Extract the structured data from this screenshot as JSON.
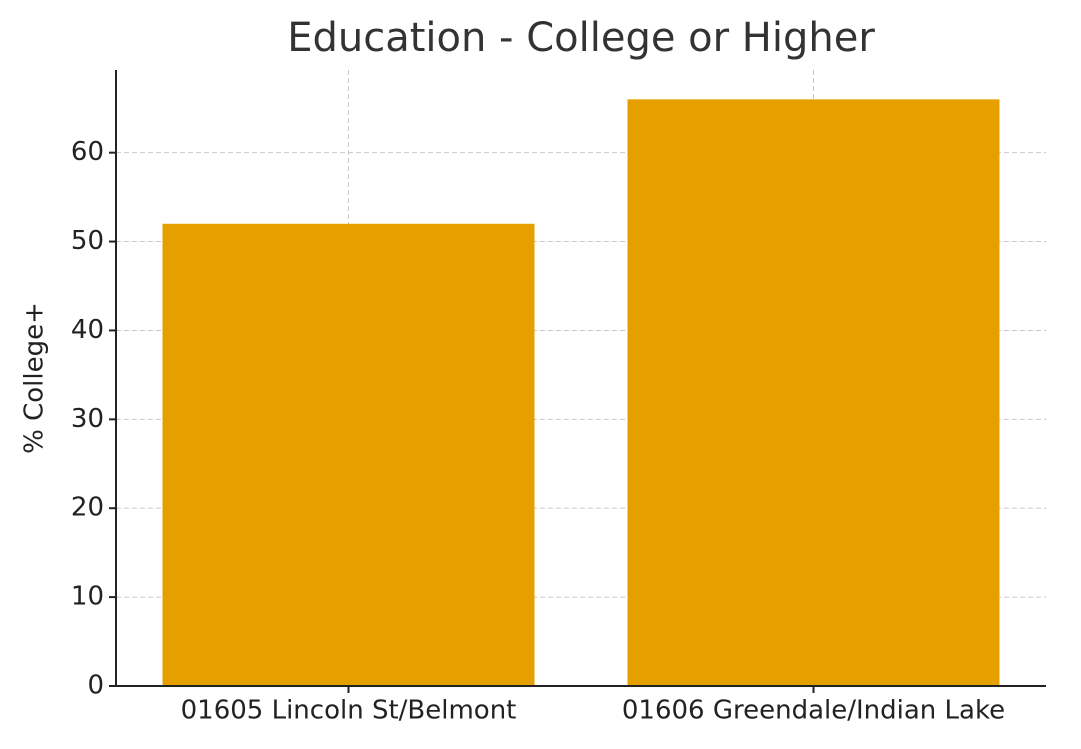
{
  "chart_data": {
    "type": "bar",
    "title": "Education - College or Higher",
    "ylabel": "% College+",
    "categories": [
      "01605 Lincoln St/Belmont",
      "01606 Greendale/Indian Lake"
    ],
    "values": [
      52,
      66
    ],
    "color": "#e5a000",
    "ylim": [
      0,
      69.3
    ],
    "yticks": [
      0,
      10,
      20,
      30,
      40,
      50,
      60
    ],
    "grid": true
  }
}
